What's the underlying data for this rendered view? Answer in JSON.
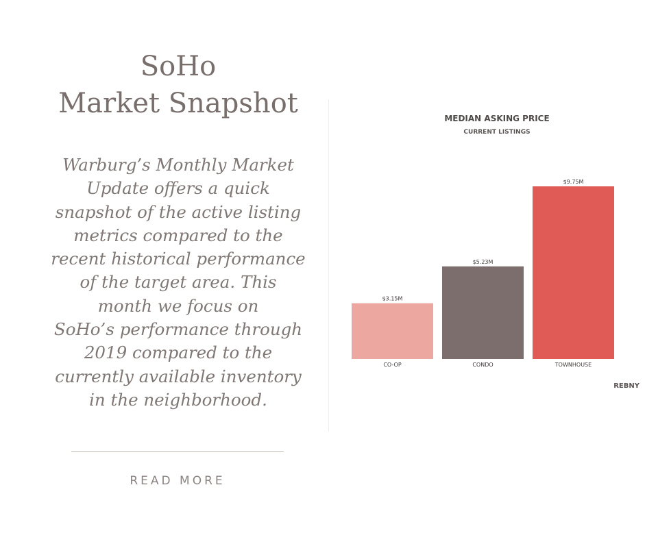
{
  "article": {
    "title_line1": "SoHo",
    "title_line2": "Market Snapshot",
    "description_lines": [
      "Warburg’s Monthly Market",
      "Update offers a quick",
      "snapshot of the active listing",
      "metrics compared to the",
      "recent historical performance",
      "of the target area. This",
      "month we focus on",
      "SoHo’s performance through",
      "2019 compared to the",
      "currently available inventory",
      "in the neighborhood."
    ],
    "read_more_label": "READ MORE"
  },
  "chart_data": {
    "type": "bar",
    "title": "MEDIAN ASKING PRICE",
    "subtitle": "CURRENT LISTINGS",
    "categories": [
      "CO-OP",
      "CONDO",
      "TOWNHOUSE"
    ],
    "values": [
      3.15,
      5.23,
      9.75
    ],
    "value_labels": [
      "$3.15M",
      "$5.23M",
      "$9.75M"
    ],
    "colors": [
      "#eca8a0",
      "#7b6e6c",
      "#e05a56"
    ],
    "ylim": [
      0,
      9.75
    ],
    "grid": false,
    "source": "REBNY"
  }
}
